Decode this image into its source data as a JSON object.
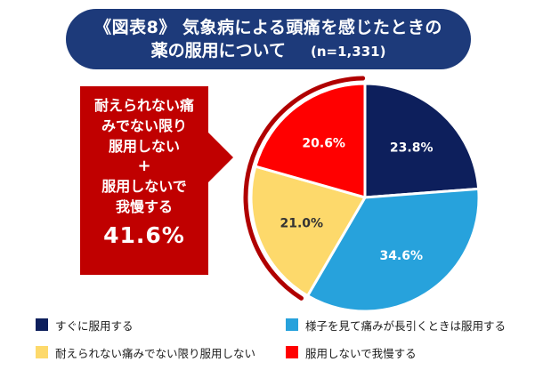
{
  "title": {
    "line1": "《図表8》 気象病による頭痛を感じたときの",
    "line2": "薬の服用について",
    "sample": "(n=1,331)"
  },
  "callout": {
    "lines": [
      "耐えられない痛",
      "みでない限り",
      "服用しない"
    ],
    "plus": "+",
    "lines2": [
      "服用しないで",
      "我慢する"
    ],
    "percent": "41.6%",
    "color": "#c00000"
  },
  "chart_data": {
    "type": "pie",
    "title": "《図表8》 気象病による頭痛を感じたときの薬の服用について",
    "n": "n=1,331",
    "start_angle_deg": 0,
    "direction": "clockwise",
    "slices": [
      {
        "label": "すぐに服用する",
        "value": 23.8,
        "display": "23.8%",
        "color": "#0d1f5c",
        "text_color": "#ffffff"
      },
      {
        "label": "様子を見て痛みが長引くときは服用する",
        "value": 34.6,
        "display": "34.6%",
        "color": "#27a2dc",
        "text_color": "#ffffff"
      },
      {
        "label": "耐えられない痛みでない限り服用しない",
        "value": 21.0,
        "display": "21.0%",
        "color": "#fdd96b",
        "text_color": "#333333"
      },
      {
        "label": "服用しないで我慢する",
        "value": 20.6,
        "display": "20.6%",
        "color": "#ff0000",
        "text_color": "#ffffff"
      }
    ],
    "highlight_arc": {
      "from_slice": 2,
      "to_slice": 3,
      "color": "#b00000"
    }
  },
  "legend": [
    {
      "label": "すぐに服用する",
      "color": "#0d1f5c"
    },
    {
      "label": "様子を見て痛みが長引くときは服用する",
      "color": "#27a2dc"
    },
    {
      "label": "耐えられない痛みでない限り服用しない",
      "color": "#fdd96b"
    },
    {
      "label": "服用しないで我慢する",
      "color": "#ff0000"
    }
  ]
}
